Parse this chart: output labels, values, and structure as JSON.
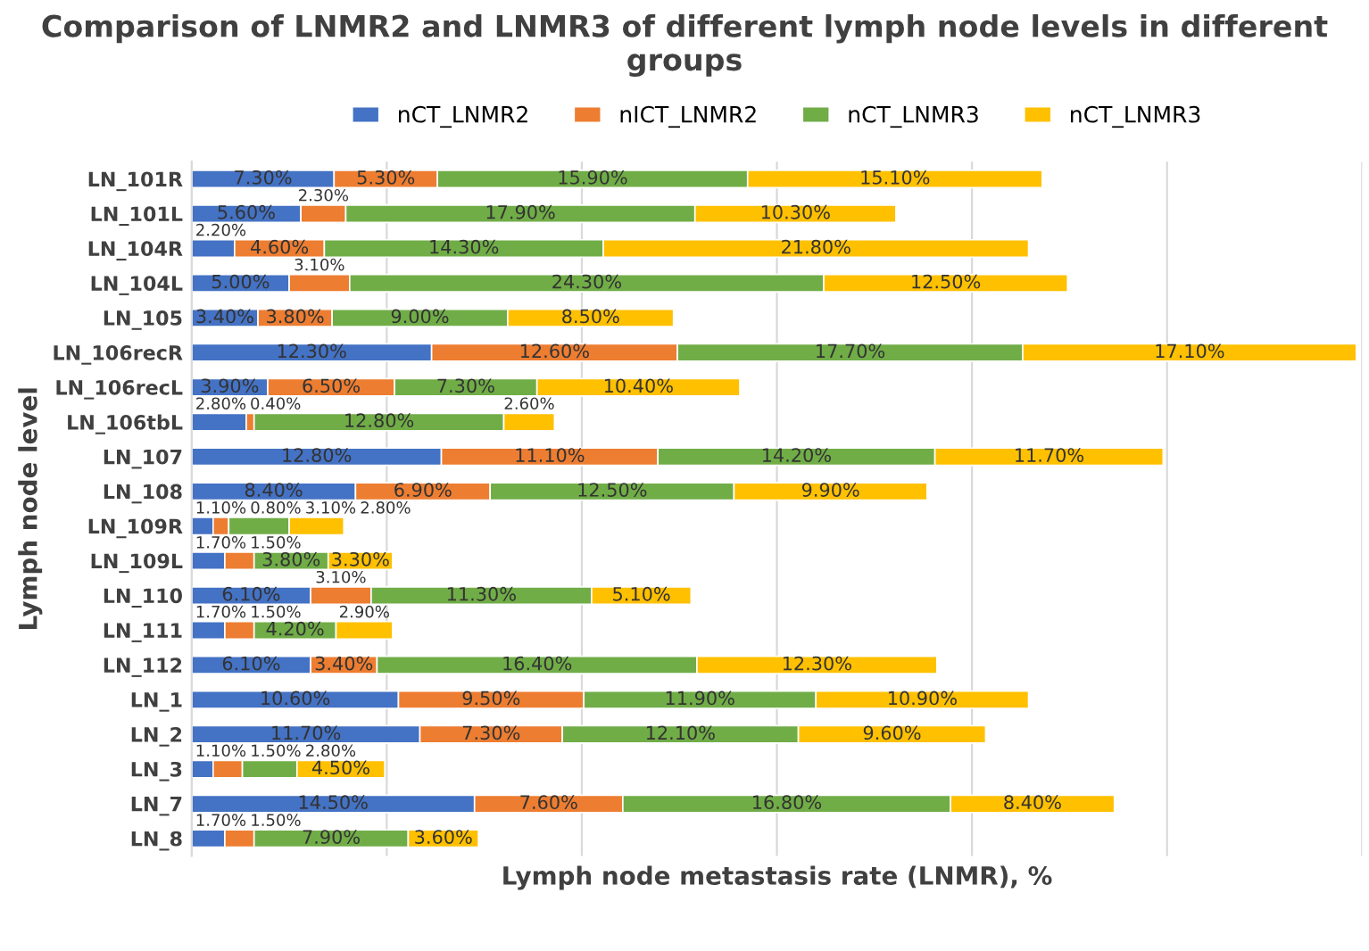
{
  "chart_data": {
    "type": "bar",
    "orientation": "horizontal",
    "stacked": true,
    "xlim": [
      0,
      60
    ],
    "xticks": [
      {
        "value": 0,
        "label": null
      },
      {
        "value": 10,
        "label": null
      },
      {
        "value": 20,
        "label": null
      },
      {
        "value": 30,
        "label": null
      },
      {
        "value": 40,
        "label": null
      },
      {
        "value": 50,
        "label": null
      },
      {
        "value": 60,
        "label": null
      }
    ],
    "title": "Comparison of LNMR2 and LNMR3 of different lymph node levels in different groups",
    "xlabel": "Lymph node metastasis rate (LNMR), %",
    "ylabel": "Lymph node level",
    "categories": [
      "LN_101R",
      "LN_101L",
      "LN_104R",
      "LN_104L",
      "LN_105",
      "LN_106recR",
      "LN_106recL",
      "LN_106tbL",
      "LN_107",
      "LN_108",
      "LN_109R",
      "LN_109L",
      "LN_110",
      "LN_111",
      "LN_112",
      "LN_1",
      "LN_2",
      "LN_3",
      "LN_7",
      "LN_8"
    ],
    "series": [
      {
        "name": "nCT_LNMR2",
        "color": "#4472c4",
        "values": [
          7.3,
          5.6,
          2.2,
          5.0,
          3.4,
          12.3,
          3.9,
          2.8,
          12.8,
          8.4,
          1.1,
          1.7,
          6.1,
          1.7,
          6.1,
          10.6,
          11.7,
          1.1,
          14.5,
          1.7
        ],
        "value_labels": [
          "7.30%",
          "5.60%",
          "2.20%",
          "5.00%",
          "3.40%",
          "12.30%",
          "3.90%",
          "2.80%",
          "12.80%",
          "8.40%",
          "1.10%",
          "1.70%",
          "6.10%",
          "1.70%",
          "6.10%",
          "10.60%",
          "11.70%",
          "1.10%",
          "14.50%",
          "1.70%"
        ]
      },
      {
        "name": "nICT_LNMR2",
        "color": "#ed7d31",
        "values": [
          5.3,
          2.3,
          4.6,
          3.1,
          3.8,
          12.6,
          6.5,
          0.4,
          11.1,
          6.9,
          0.8,
          1.5,
          3.1,
          1.5,
          3.4,
          9.5,
          7.3,
          1.5,
          7.6,
          1.5
        ],
        "value_labels": [
          "5.30%",
          "2.30%",
          "4.60%",
          "3.10%",
          "3.80%",
          "12.60%",
          "6.50%",
          "0.40%",
          "11.10%",
          "6.90%",
          "0.80%",
          "1.50%",
          "3.10%",
          "1.50%",
          "3.40%",
          "9.50%",
          "7.30%",
          "1.50%",
          "7.60%",
          "1.50%"
        ]
      },
      {
        "name": "nCT_LNMR3",
        "color": "#70ad47",
        "values": [
          15.9,
          17.9,
          14.3,
          24.3,
          9.0,
          17.7,
          7.3,
          12.8,
          14.2,
          12.5,
          3.1,
          3.8,
          11.3,
          4.2,
          16.4,
          11.9,
          12.1,
          2.8,
          16.8,
          7.9
        ],
        "value_labels": [
          "15.90%",
          "17.90%",
          "14.30%",
          "24.30%",
          "9.00%",
          "17.70%",
          "7.30%",
          "12.80%",
          "14.20%",
          "12.50%",
          "3.10%",
          "3.80%",
          "11.30%",
          "4.20%",
          "16.40%",
          "11.90%",
          "12.10%",
          "2.80%",
          "16.80%",
          "7.90%"
        ]
      },
      {
        "name": "nCT_LNMR3",
        "color": "#ffc000",
        "values": [
          15.1,
          10.3,
          21.8,
          12.5,
          8.5,
          17.1,
          10.4,
          2.6,
          11.7,
          9.9,
          2.8,
          3.3,
          5.1,
          2.9,
          12.3,
          10.9,
          9.6,
          4.5,
          8.4,
          3.6
        ],
        "value_labels": [
          "15.10%",
          "10.30%",
          "21.80%",
          "12.50%",
          "8.50%",
          "17.10%",
          "10.40%",
          "2.60%",
          "11.70%",
          "9.90%",
          "2.80%",
          "3.30%",
          "5.10%",
          "2.90%",
          "12.30%",
          "10.90%",
          "9.60%",
          "4.50%",
          "8.40%",
          "3.60%"
        ]
      }
    ],
    "grid": "x",
    "legend": "top",
    "tick_labels": "y"
  }
}
